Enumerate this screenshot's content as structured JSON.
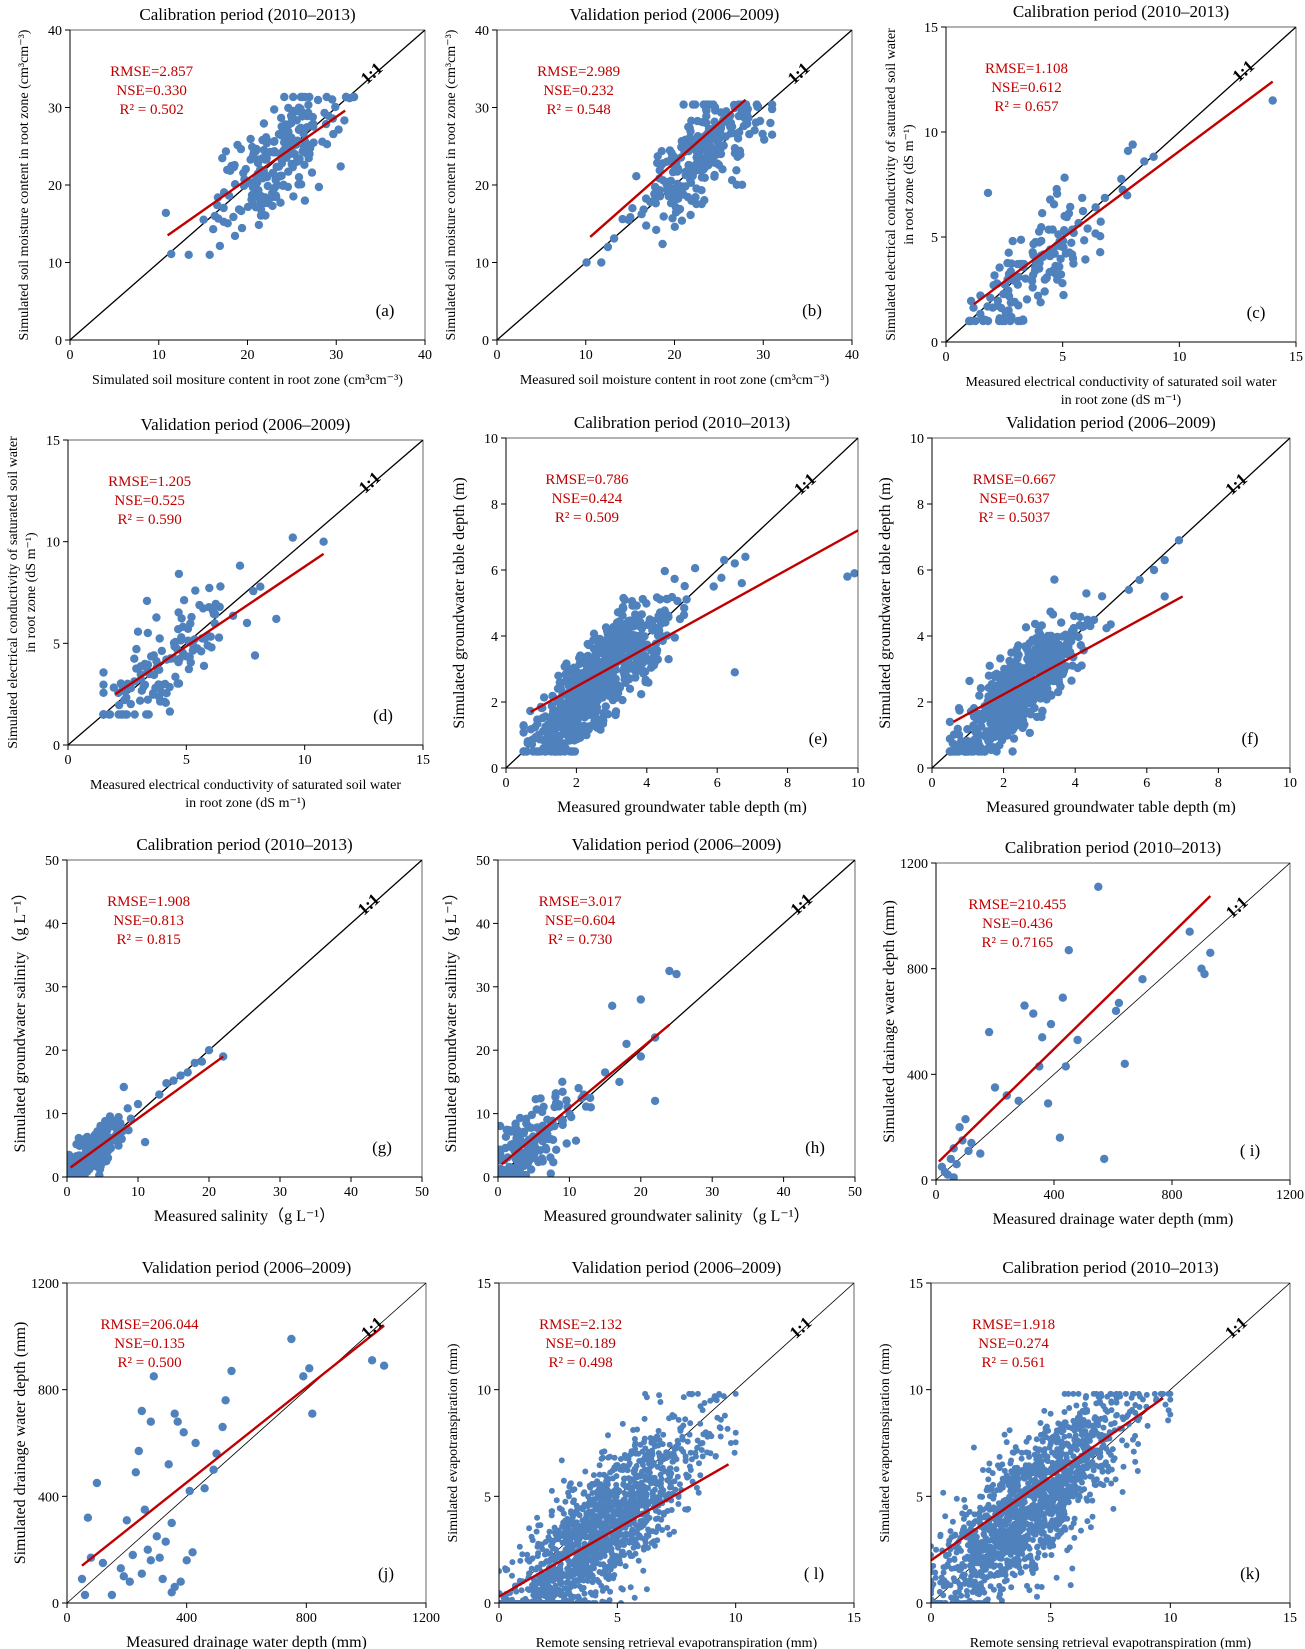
{
  "colors": {
    "points": "#4f81bd",
    "regression": "#c00000",
    "identity": "#000000",
    "stats": "#c00000"
  },
  "chart_data": [
    {
      "panel_label": "(a)",
      "type": "scatter",
      "title": "Calibration period (2010–2013)",
      "xlabel": "Simulated  soil mositure content in root zone (cm³cm⁻³)",
      "ylabel": "Simulated  soil moisture content in root zone (cm³cm⁻³)",
      "xlim": [
        0,
        40
      ],
      "ylim": [
        0,
        40
      ],
      "xticks": [
        0,
        10,
        20,
        30,
        40
      ],
      "yticks": [
        0,
        10,
        20,
        30,
        40
      ],
      "identity_label": "1:1",
      "stats": [
        "RMSE=2.857",
        "NSE=0.330",
        "R² = 0.502"
      ],
      "regression": [
        [
          11,
          13.5
        ],
        [
          31,
          29.6
        ]
      ],
      "point_cloud": {
        "center": [
          23,
          23
        ],
        "spread": [
          3.5,
          4
        ],
        "range": [
          11,
          32
        ],
        "count": 220,
        "tail": [
          [
            11.4,
            11.1
          ],
          [
            10.8,
            16.4
          ],
          [
            31.5,
            31.2
          ],
          [
            30.5,
            22.4
          ]
        ]
      }
    },
    {
      "panel_label": "(b)",
      "type": "scatter",
      "title": "Validation period (2006–2009)",
      "xlabel": "Measured soil moisture content in root zone (cm³cm⁻³)",
      "ylabel": "Simulated  soil moisture content in root zone (cm³cm⁻³)",
      "xlim": [
        0,
        40
      ],
      "ylim": [
        0,
        40
      ],
      "xticks": [
        0,
        10,
        20,
        30,
        40
      ],
      "yticks": [
        0,
        10,
        20,
        30,
        40
      ],
      "identity_label": "1:1",
      "stats": [
        "RMSE=2.989",
        "NSE=0.232",
        "R² = 0.548"
      ],
      "regression": [
        [
          10.5,
          13.3
        ],
        [
          28,
          31
        ]
      ],
      "point_cloud": {
        "center": [
          22.5,
          23
        ],
        "spread": [
          3.3,
          3.5
        ],
        "range": [
          10,
          31
        ],
        "count": 260,
        "tail": [
          [
            10.1,
            10
          ],
          [
            12.5,
            12
          ],
          [
            13.2,
            13.1
          ],
          [
            30.8,
            28
          ]
        ]
      }
    },
    {
      "panel_label": "(c)",
      "type": "scatter",
      "title": "Calibration period (2010–2013)",
      "xlabel": "Measured electrical conductivity of saturated soil water in root zone (dS m⁻¹)",
      "ylabel": "Simulated  electrical conductivity of saturated soil water in root zone (dS m⁻¹)",
      "xlim": [
        0,
        15
      ],
      "ylim": [
        0,
        15
      ],
      "xticks": [
        0,
        5,
        10,
        15
      ],
      "yticks": [
        0,
        5,
        10,
        15
      ],
      "identity_label": "1:1",
      "stats": [
        "RMSE=1.108",
        "NSE=0.612",
        "R² = 0.657"
      ],
      "regression": [
        [
          1.2,
          1.8
        ],
        [
          14,
          12.4
        ]
      ],
      "point_cloud": {
        "center": [
          4,
          3.8
        ],
        "spread": [
          1.6,
          1.4
        ],
        "range": [
          1,
          9
        ],
        "count": 150,
        "tail": [
          [
            14,
            11.5
          ],
          [
            8,
            9.4
          ],
          [
            8.5,
            8.6
          ],
          [
            7.8,
            9.1
          ],
          [
            1.8,
            7.1
          ]
        ]
      }
    },
    {
      "panel_label": "(d)",
      "type": "scatter",
      "title": "Validation period (2006–2009)",
      "xlabel": "Measured electrical conductivity of saturated soil water in root zone (dS m⁻¹)",
      "ylabel": "Simulated  electrical conductivity of saturated soil water in root zone (dS m⁻¹)",
      "xlim": [
        0,
        15
      ],
      "ylim": [
        0,
        15
      ],
      "xticks": [
        0,
        5,
        10,
        15
      ],
      "yticks": [
        0,
        5,
        10,
        15
      ],
      "identity_label": "1:1",
      "stats": [
        "RMSE=1.205",
        "NSE=0.525",
        "R² = 0.590"
      ],
      "regression": [
        [
          2,
          2.5
        ],
        [
          10.8,
          9.4
        ]
      ],
      "point_cloud": {
        "center": [
          4,
          4
        ],
        "spread": [
          1.7,
          1.5
        ],
        "range": [
          1.5,
          9
        ],
        "count": 140,
        "tail": [
          [
            10.8,
            10
          ],
          [
            9.5,
            10.2
          ],
          [
            8.8,
            6.2
          ],
          [
            7.9,
            4.4
          ]
        ]
      }
    },
    {
      "panel_label": "(e)",
      "type": "scatter",
      "title": "Calibration period (2010–2013)",
      "xlabel": "Measured groundwater table depth (m)",
      "ylabel": "Simulated groundwater table depth (m)",
      "xlim": [
        0,
        10
      ],
      "ylim": [
        0,
        10
      ],
      "xticks": [
        0,
        2,
        4,
        6,
        8,
        10
      ],
      "yticks": [
        0,
        2,
        4,
        6,
        8,
        10
      ],
      "identity_label": "1:1",
      "stats": [
        "RMSE=0.786",
        "NSE=0.424",
        "R² = 0.509"
      ],
      "regression": [
        [
          0.7,
          1.7
        ],
        [
          10,
          7.2
        ]
      ],
      "point_cloud": {
        "center": [
          2.6,
          2.6
        ],
        "spread": [
          0.9,
          0.8
        ],
        "range": [
          0.5,
          6.9
        ],
        "count": 700,
        "tail": [
          [
            9.7,
            5.8
          ],
          [
            9.9,
            5.9
          ],
          [
            6.8,
            6.4
          ],
          [
            6.5,
            6.2
          ],
          [
            6.2,
            6.3
          ],
          [
            6.7,
            5.6
          ],
          [
            5.9,
            5.5
          ],
          [
            6.5,
            2.9
          ]
        ]
      }
    },
    {
      "panel_label": "(f)",
      "type": "scatter",
      "title": "Validation period (2006–2009)",
      "xlabel": "Measured groundwater table depth (m)",
      "ylabel": "Simulated groundwater table depth (m)",
      "xlim": [
        0,
        10
      ],
      "ylim": [
        0,
        10
      ],
      "xticks": [
        0,
        2,
        4,
        6,
        8,
        10
      ],
      "yticks": [
        0,
        2,
        4,
        6,
        8,
        10
      ],
      "identity_label": "1:1",
      "stats": [
        "RMSE=0.667",
        "NSE=0.637",
        "R² = 0.5037"
      ],
      "regression": [
        [
          0.6,
          1.4
        ],
        [
          7,
          5.2
        ]
      ],
      "point_cloud": {
        "center": [
          2.4,
          2.3
        ],
        "spread": [
          0.8,
          0.7
        ],
        "range": [
          0.5,
          7
        ],
        "count": 650,
        "tail": [
          [
            6.9,
            6.9
          ],
          [
            6.5,
            6.3
          ],
          [
            6.2,
            6.0
          ],
          [
            5.8,
            5.7
          ],
          [
            5.5,
            5.4
          ],
          [
            6.5,
            5.2
          ]
        ]
      }
    },
    {
      "panel_label": "(g)",
      "type": "scatter",
      "title": "Calibration period (2010–2013)",
      "xlabel": "Measured salinity（g L⁻¹）",
      "ylabel": "Simulated groundwater salinity（g L⁻¹）",
      "xlim": [
        0,
        50
      ],
      "ylim": [
        0,
        50
      ],
      "xticks": [
        0,
        10,
        20,
        30,
        40,
        50
      ],
      "yticks": [
        0,
        10,
        20,
        30,
        40,
        50
      ],
      "identity_label": "1:1",
      "stats": [
        "RMSE=1.908",
        "NSE=0.813",
        "R² = 0.815"
      ],
      "regression": [
        [
          0.5,
          1.5
        ],
        [
          22,
          19
        ]
      ],
      "point_cloud": {
        "center": [
          3.5,
          3.5
        ],
        "spread": [
          2.2,
          2.2
        ],
        "range": [
          0.3,
          22
        ],
        "count": 200,
        "tail": [
          [
            20,
            20
          ],
          [
            19,
            18.2
          ],
          [
            22,
            19
          ],
          [
            17,
            16.5
          ],
          [
            15,
            15.2
          ],
          [
            13,
            13
          ],
          [
            8,
            14.2
          ],
          [
            10,
            11.5
          ],
          [
            11,
            5.5
          ],
          [
            18,
            18
          ],
          [
            16,
            16
          ],
          [
            14,
            14.8
          ],
          [
            9,
            9.2
          ],
          [
            7.5,
            8.5
          ]
        ]
      }
    },
    {
      "panel_label": "(h)",
      "type": "scatter",
      "title": "Validation period (2006–2009)",
      "xlabel": "Measured groundwater salinity（g L⁻¹）",
      "ylabel": "Simulated groundwater salinity（g L⁻¹）",
      "xlim": [
        0,
        50
      ],
      "ylim": [
        0,
        50
      ],
      "xticks": [
        0,
        10,
        20,
        30,
        40,
        50
      ],
      "yticks": [
        0,
        10,
        20,
        30,
        40,
        50
      ],
      "identity_label": "1:1",
      "stats": [
        "RMSE=3.017",
        "NSE=0.604",
        "R² = 0.730"
      ],
      "regression": [
        [
          0.5,
          2
        ],
        [
          24,
          24
        ]
      ],
      "point_cloud": {
        "center": [
          4,
          4.5
        ],
        "spread": [
          3,
          3.5
        ],
        "range": [
          0.3,
          25
        ],
        "count": 180,
        "tail": [
          [
            24,
            32.5
          ],
          [
            25,
            32
          ],
          [
            20,
            28
          ],
          [
            16,
            27
          ],
          [
            20,
            19
          ],
          [
            22,
            22
          ],
          [
            22,
            12
          ],
          [
            17,
            15
          ],
          [
            15,
            16.5
          ],
          [
            18,
            21
          ],
          [
            12,
            13
          ],
          [
            13,
            11
          ]
        ]
      }
    },
    {
      "panel_label": "( i)",
      "type": "scatter",
      "title": "Calibration period (2010–2013)",
      "xlabel": "Measured drainage water depth (mm)",
      "ylabel": "Simulated drainage water depth (mm)",
      "xlim": [
        0,
        1200
      ],
      "ylim": [
        0,
        1200
      ],
      "xticks": [
        0,
        400,
        800,
        1200
      ],
      "yticks": [
        0,
        400,
        800,
        1200
      ],
      "identity_label": "1:1",
      "stats": [
        "RMSE=210.455",
        "NSE=0.436",
        "R² = 0.7165"
      ],
      "regression": [
        [
          10,
          70
        ],
        [
          930,
          1075
        ]
      ],
      "points": [
        [
          30,
          30
        ],
        [
          50,
          80
        ],
        [
          60,
          120
        ],
        [
          70,
          60
        ],
        [
          80,
          200
        ],
        [
          90,
          150
        ],
        [
          100,
          230
        ],
        [
          110,
          110
        ],
        [
          120,
          140
        ],
        [
          150,
          100
        ],
        [
          180,
          560
        ],
        [
          200,
          350
        ],
        [
          240,
          320
        ],
        [
          280,
          300
        ],
        [
          300,
          660
        ],
        [
          330,
          630
        ],
        [
          350,
          430
        ],
        [
          360,
          540
        ],
        [
          380,
          290
        ],
        [
          390,
          590
        ],
        [
          420,
          160
        ],
        [
          430,
          690
        ],
        [
          440,
          430
        ],
        [
          450,
          870
        ],
        [
          480,
          530
        ],
        [
          550,
          1110
        ],
        [
          570,
          80
        ],
        [
          610,
          640
        ],
        [
          620,
          670
        ],
        [
          640,
          440
        ],
        [
          700,
          760
        ],
        [
          860,
          940
        ],
        [
          900,
          800
        ],
        [
          910,
          780
        ],
        [
          930,
          860
        ],
        [
          40,
          20
        ],
        [
          60,
          10
        ],
        [
          20,
          50
        ]
      ]
    },
    {
      "panel_label": "(j)",
      "type": "scatter",
      "title": "Validation period (2006–2009)",
      "xlabel": "Measured drainage water depth (mm)",
      "ylabel": "Simulated drainage water depth (mm)",
      "xlim": [
        0,
        1200
      ],
      "ylim": [
        0,
        1200
      ],
      "xticks": [
        0,
        400,
        800,
        1200
      ],
      "yticks": [
        0,
        400,
        800,
        1200
      ],
      "identity_label": "1:1",
      "stats": [
        "RMSE=206.044",
        "NSE=0.135",
        "R² = 0.500"
      ],
      "regression": [
        [
          50,
          140
        ],
        [
          1060,
          1040
        ]
      ],
      "points": [
        [
          50,
          90
        ],
        [
          60,
          30
        ],
        [
          70,
          320
        ],
        [
          80,
          170
        ],
        [
          100,
          450
        ],
        [
          120,
          150
        ],
        [
          180,
          130
        ],
        [
          190,
          100
        ],
        [
          200,
          310
        ],
        [
          210,
          80
        ],
        [
          220,
          180
        ],
        [
          230,
          490
        ],
        [
          240,
          570
        ],
        [
          250,
          720
        ],
        [
          260,
          350
        ],
        [
          270,
          200
        ],
        [
          280,
          680
        ],
        [
          290,
          850
        ],
        [
          300,
          250
        ],
        [
          310,
          170
        ],
        [
          320,
          90
        ],
        [
          330,
          230
        ],
        [
          340,
          520
        ],
        [
          350,
          300
        ],
        [
          360,
          710
        ],
        [
          370,
          680
        ],
        [
          380,
          80
        ],
        [
          390,
          640
        ],
        [
          400,
          160
        ],
        [
          410,
          420
        ],
        [
          420,
          190
        ],
        [
          430,
          600
        ],
        [
          460,
          430
        ],
        [
          490,
          500
        ],
        [
          500,
          560
        ],
        [
          520,
          660
        ],
        [
          530,
          760
        ],
        [
          550,
          870
        ],
        [
          750,
          990
        ],
        [
          790,
          850
        ],
        [
          810,
          880
        ],
        [
          820,
          710
        ],
        [
          1020,
          910
        ],
        [
          1060,
          890
        ],
        [
          150,
          30
        ],
        [
          280,
          160
        ],
        [
          360,
          60
        ],
        [
          250,
          110
        ],
        [
          350,
          40
        ]
      ]
    },
    {
      "panel_label": "( l)",
      "type": "scatter",
      "title": "Validation period (2006–2009)",
      "xlabel": "Remote sensing retrieval  evapotranspiration  (mm)",
      "ylabel": "Simulated evapotranspiration  (mm)",
      "xlim": [
        0,
        15
      ],
      "ylim": [
        0,
        15
      ],
      "xticks": [
        0,
        5,
        10,
        15
      ],
      "yticks": [
        0,
        5,
        10,
        15
      ],
      "identity_label": "1:1",
      "stats": [
        "RMSE=2.132",
        "NSE=0.189",
        "R² = 0.498"
      ],
      "regression": [
        [
          0,
          0.3
        ],
        [
          9.7,
          6.5
        ]
      ],
      "point_cloud": {
        "center": [
          4.2,
          3.2
        ],
        "spread": [
          2.0,
          1.8
        ],
        "range": [
          0,
          10
        ],
        "count": 1500,
        "tail": [
          [
            9.5,
            9.7
          ],
          [
            9.2,
            9.5
          ],
          [
            8.5,
            8.4
          ],
          [
            9.8,
            7.5
          ]
        ]
      }
    },
    {
      "panel_label": "(k)",
      "type": "scatter",
      "title": "Calibration period (2010–2013)",
      "xlabel": "Remote sensing retrieval  evapotranspiration  (mm)",
      "ylabel": "Simulated evapotranspiration  (mm)",
      "xlim": [
        0,
        15
      ],
      "ylim": [
        0,
        15
      ],
      "xticks": [
        0,
        5,
        10,
        15
      ],
      "yticks": [
        0,
        5,
        10,
        15
      ],
      "identity_label": "1:1",
      "stats": [
        "RMSE=1.918",
        "NSE=0.274",
        "R² = 0.561"
      ],
      "regression": [
        [
          0,
          2.0
        ],
        [
          9.7,
          9.6
        ]
      ],
      "point_cloud": {
        "center": [
          4.2,
          4.6
        ],
        "spread": [
          2.0,
          1.8
        ],
        "range": [
          0,
          10
        ],
        "count": 1500,
        "tail": [
          [
            9.6,
            9.8
          ],
          [
            9.4,
            9.5
          ],
          [
            9.0,
            9.2
          ],
          [
            9.8,
            9.3
          ]
        ]
      }
    }
  ]
}
